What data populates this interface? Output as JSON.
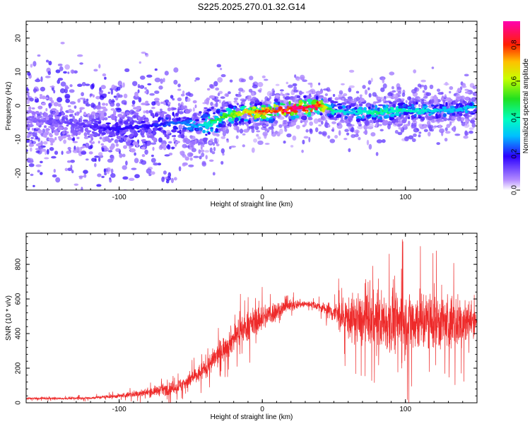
{
  "figure_title": "S225.2025.270.01.32.G14",
  "chart_data": [
    {
      "type": "heatmap",
      "title": "S225.2025.270.01.32.G14",
      "xlabel": "Height of straight line (km)",
      "ylabel": "Frequency (Hz)",
      "xlim": [
        -165,
        150
      ],
      "ylim": [
        -25,
        25
      ],
      "x_ticks": [
        -100,
        0,
        100
      ],
      "y_ticks": [
        -20,
        -10,
        0,
        10,
        20
      ],
      "colorbar": {
        "label": "Normalized spectral amplitude",
        "range": [
          0,
          0.93
        ],
        "ticks": [
          0,
          0.2,
          0.4,
          0.6,
          0.8
        ]
      },
      "ridge": {
        "x": [
          -165,
          -140,
          -120,
          -100,
          -80,
          -60,
          -45,
          -35,
          -25,
          -10,
          0,
          10,
          20,
          30,
          40,
          50,
          60,
          80,
          100,
          120,
          140,
          150
        ],
        "frequency": [
          -4,
          -5,
          -6,
          -7,
          -6,
          -5,
          -6,
          -5,
          -3,
          -2,
          -2,
          -1.5,
          -1,
          -0.5,
          0,
          -1.5,
          -2,
          -2,
          -1.5,
          -1.5,
          -1,
          0
        ],
        "peak_amplitude": [
          0.1,
          0.12,
          0.15,
          0.2,
          0.2,
          0.25,
          0.3,
          0.45,
          0.55,
          0.7,
          0.8,
          0.85,
          0.9,
          0.93,
          0.85,
          0.4,
          0.35,
          0.45,
          0.4,
          0.35,
          0.3,
          0.35
        ]
      }
    },
    {
      "type": "line",
      "title": "",
      "xlabel": "Height of straight line (km)",
      "ylabel": "SNR (10 * v/v)",
      "xlim": [
        -165,
        150
      ],
      "ylim": [
        0,
        980
      ],
      "x_ticks": [
        -100,
        0,
        100
      ],
      "y_ticks": [
        0,
        200,
        400,
        600,
        800
      ],
      "series": [
        {
          "name": "SNR",
          "color": "#ee2a2a",
          "x": [
            -165,
            -140,
            -120,
            -100,
            -80,
            -60,
            -45,
            -35,
            -25,
            -15,
            -5,
            5,
            15,
            25,
            35,
            45,
            55,
            65,
            75,
            85,
            95,
            105,
            115,
            125,
            135,
            145,
            150
          ],
          "mean": [
            25,
            25,
            28,
            40,
            60,
            90,
            160,
            240,
            330,
            420,
            470,
            510,
            550,
            570,
            570,
            540,
            500,
            480,
            470,
            470,
            470,
            480,
            470,
            470,
            460,
            470,
            480
          ],
          "spread": [
            10,
            10,
            12,
            20,
            40,
            60,
            80,
            100,
            120,
            130,
            130,
            110,
            70,
            40,
            30,
            60,
            150,
            220,
            250,
            270,
            280,
            300,
            280,
            270,
            250,
            200,
            60
          ]
        }
      ]
    }
  ]
}
